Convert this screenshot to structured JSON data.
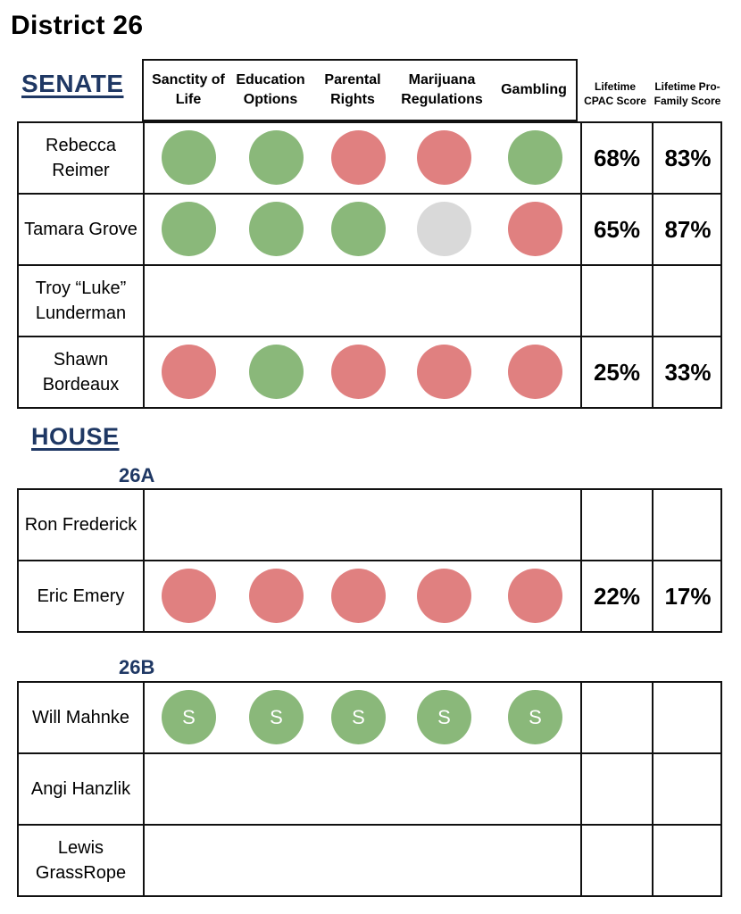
{
  "district_title": "District 26",
  "senate_title": "SENATE",
  "house_title": "HOUSE",
  "house_a_title": "26A",
  "house_b_title": "26B",
  "headers": {
    "sanctity": "Sanctity of Life",
    "education": "Education Options",
    "parental": "Parental Rights",
    "marijuana": "Marijuana Regulations",
    "gambling": "Gambling",
    "cpac": "Lifetime CPAC Score",
    "profamily": "Lifetime Pro-Family Score"
  },
  "colors": {
    "green": "#8ab87a",
    "red": "#e08080",
    "gray": "#d9d9d9",
    "section_blue": "#1f3864"
  },
  "senate": [
    {
      "name": "Rebecca Reimer",
      "positions": [
        "green",
        "green",
        "red",
        "red",
        "green"
      ],
      "cpac": "68%",
      "profamily": "83%"
    },
    {
      "name": "Tamara Grove",
      "positions": [
        "green",
        "green",
        "green",
        "gray",
        "red"
      ],
      "cpac": "65%",
      "profamily": "87%"
    },
    {
      "name": "Troy “Luke” Lunderman",
      "positions": [],
      "cpac": "",
      "profamily": ""
    },
    {
      "name": "Shawn Bordeaux",
      "positions": [
        "red",
        "green",
        "red",
        "red",
        "red"
      ],
      "cpac": "25%",
      "profamily": "33%"
    }
  ],
  "house_a": [
    {
      "name": "Ron Frederick",
      "positions": [],
      "cpac": "",
      "profamily": ""
    },
    {
      "name": "Eric Emery",
      "positions": [
        "red",
        "red",
        "red",
        "red",
        "red"
      ],
      "cpac": "22%",
      "profamily": "17%"
    }
  ],
  "house_b": [
    {
      "name": "Will Mahnke",
      "positions": [
        "green",
        "green",
        "green",
        "green",
        "green"
      ],
      "dot_label": "S",
      "cpac": "",
      "profamily": ""
    },
    {
      "name": "Angi Hanzlik",
      "positions": [],
      "cpac": "",
      "profamily": ""
    },
    {
      "name": "Lewis GrassRope",
      "positions": [],
      "cpac": "",
      "profamily": ""
    }
  ]
}
